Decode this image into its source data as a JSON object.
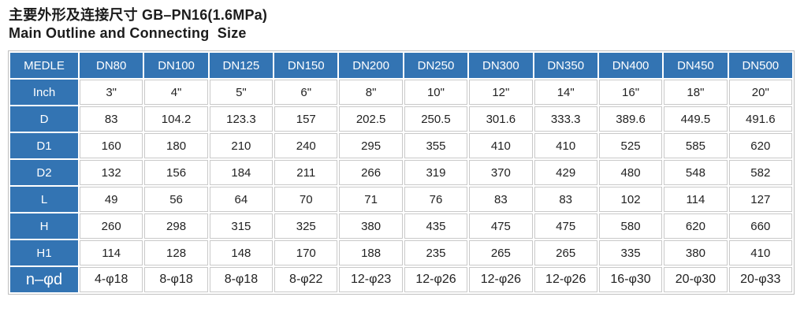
{
  "page": {
    "title_zh": "主要外形及连接尺寸 GB–PN16(1.6MPa)",
    "title_en": "Main Outline and Connecting  Size"
  },
  "colors": {
    "header_blue": "#3374b3",
    "cell_border": "#c9c9c9",
    "table_outline": "#bfbfbf",
    "text": "#222222"
  },
  "chart_data": {
    "type": "table",
    "corner_label": "MEDLE",
    "columns": [
      "DN80",
      "DN100",
      "DN125",
      "DN150",
      "DN200",
      "DN250",
      "DN300",
      "DN350",
      "DN400",
      "DN450",
      "DN500"
    ],
    "rows": [
      {
        "label": "Inch",
        "values": [
          "3\"",
          "4\"",
          "5\"",
          "6\"",
          "8\"",
          "10\"",
          "12\"",
          "14\"",
          "16\"",
          "18\"",
          "20\""
        ]
      },
      {
        "label": "D",
        "values": [
          "83",
          "104.2",
          "123.3",
          "157",
          "202.5",
          "250.5",
          "301.6",
          "333.3",
          "389.6",
          "449.5",
          "491.6"
        ]
      },
      {
        "label": "D1",
        "values": [
          "160",
          "180",
          "210",
          "240",
          "295",
          "355",
          "410",
          "410",
          "525",
          "585",
          "620"
        ]
      },
      {
        "label": "D2",
        "values": [
          "132",
          "156",
          "184",
          "211",
          "266",
          "319",
          "370",
          "429",
          "480",
          "548",
          "582"
        ]
      },
      {
        "label": "L",
        "values": [
          "49",
          "56",
          "64",
          "70",
          "71",
          "76",
          "83",
          "83",
          "102",
          "114",
          "127"
        ]
      },
      {
        "label": "H",
        "values": [
          "260",
          "298",
          "315",
          "325",
          "380",
          "435",
          "475",
          "475",
          "580",
          "620",
          "660"
        ]
      },
      {
        "label": "H1",
        "values": [
          "114",
          "128",
          "148",
          "170",
          "188",
          "235",
          "265",
          "265",
          "335",
          "380",
          "410"
        ]
      },
      {
        "label": "n–φd",
        "values": [
          "4-φ18",
          "8-φ18",
          "8-φ18",
          "8-φ22",
          "12-φ23",
          "12-φ26",
          "12-φ26",
          "12-φ26",
          "16-φ30",
          "20-φ30",
          "20-φ33"
        ]
      }
    ]
  }
}
